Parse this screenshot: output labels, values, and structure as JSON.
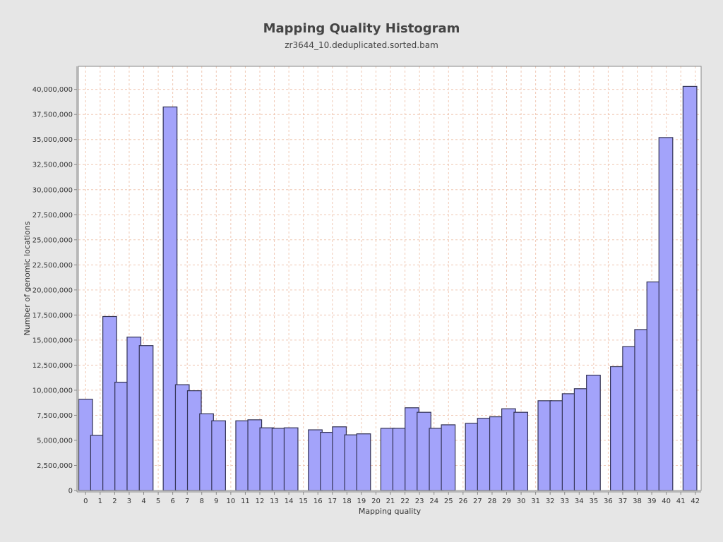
{
  "chart_data": {
    "type": "bar",
    "title": "Mapping Quality Histogram",
    "subtitle": "zr3644_10.deduplicated.sorted.bam",
    "xlabel": "Mapping quality",
    "ylabel": "Number of genomic locations",
    "xlim": [
      -0.5,
      42.4
    ],
    "ylim": [
      0,
      42300000
    ],
    "grid": true,
    "legend": "none",
    "x_ticks": [
      0,
      1,
      2,
      3,
      4,
      5,
      6,
      7,
      8,
      9,
      10,
      11,
      12,
      13,
      14,
      15,
      16,
      17,
      18,
      19,
      20,
      21,
      22,
      23,
      24,
      25,
      26,
      27,
      28,
      29,
      30,
      31,
      32,
      33,
      34,
      35,
      36,
      37,
      38,
      39,
      40,
      41,
      42
    ],
    "x_tick_labels": [
      "0",
      "1",
      "2",
      "3",
      "4",
      "5",
      "6",
      "7",
      "8",
      "9",
      "10",
      "11",
      "12",
      "13",
      "14",
      "15",
      "16",
      "17",
      "18",
      "19",
      "20",
      "21",
      "22",
      "23",
      "24",
      "25",
      "26",
      "27",
      "28",
      "29",
      "30",
      "31",
      "32",
      "33",
      "34",
      "35",
      "36",
      "37",
      "38",
      "39",
      "40",
      "41",
      "42"
    ],
    "y_ticks": [
      0,
      2500000,
      5000000,
      7500000,
      10000000,
      12500000,
      15000000,
      17500000,
      20000000,
      22500000,
      25000000,
      27500000,
      30000000,
      32500000,
      35000000,
      37500000,
      40000000
    ],
    "y_tick_labels": [
      "0",
      "2,500,000",
      "5,000,000",
      "7,500,000",
      "10,000,000",
      "12,500,000",
      "15,000,000",
      "17,500,000",
      "20,000,000",
      "22,500,000",
      "25,000,000",
      "27,500,000",
      "30,000,000",
      "32,500,000",
      "35,000,000",
      "37,500,000",
      "40,000,000"
    ],
    "bars": [
      {
        "x": 0.0,
        "value": 9100000
      },
      {
        "x": 0.82,
        "value": 5500000
      },
      {
        "x": 1.66,
        "value": 17350000
      },
      {
        "x": 2.49,
        "value": 10800000
      },
      {
        "x": 3.33,
        "value": 15300000
      },
      {
        "x": 4.17,
        "value": 14450000
      },
      {
        "x": 5.82,
        "value": 38250000
      },
      {
        "x": 6.66,
        "value": 10550000
      },
      {
        "x": 7.49,
        "value": 9950000
      },
      {
        "x": 8.33,
        "value": 7650000
      },
      {
        "x": 9.16,
        "value": 6950000
      },
      {
        "x": 10.82,
        "value": 6950000
      },
      {
        "x": 11.65,
        "value": 7050000
      },
      {
        "x": 12.48,
        "value": 6250000
      },
      {
        "x": 13.32,
        "value": 6200000
      },
      {
        "x": 14.15,
        "value": 6250000
      },
      {
        "x": 15.82,
        "value": 6050000
      },
      {
        "x": 16.65,
        "value": 5800000
      },
      {
        "x": 17.48,
        "value": 6350000
      },
      {
        "x": 18.32,
        "value": 5550000
      },
      {
        "x": 19.15,
        "value": 5650000
      },
      {
        "x": 20.81,
        "value": 6200000
      },
      {
        "x": 21.64,
        "value": 6200000
      },
      {
        "x": 22.48,
        "value": 8250000
      },
      {
        "x": 23.31,
        "value": 7800000
      },
      {
        "x": 24.15,
        "value": 6200000
      },
      {
        "x": 24.98,
        "value": 6550000
      },
      {
        "x": 26.64,
        "value": 6700000
      },
      {
        "x": 27.47,
        "value": 7200000
      },
      {
        "x": 28.31,
        "value": 7350000
      },
      {
        "x": 29.14,
        "value": 8150000
      },
      {
        "x": 29.98,
        "value": 7800000
      },
      {
        "x": 31.64,
        "value": 8950000
      },
      {
        "x": 32.47,
        "value": 8950000
      },
      {
        "x": 33.31,
        "value": 9650000
      },
      {
        "x": 34.14,
        "value": 10150000
      },
      {
        "x": 34.98,
        "value": 11500000
      },
      {
        "x": 36.63,
        "value": 12350000
      },
      {
        "x": 37.47,
        "value": 14350000
      },
      {
        "x": 38.3,
        "value": 16050000
      },
      {
        "x": 39.14,
        "value": 20800000
      },
      {
        "x": 39.97,
        "value": 35200000
      },
      {
        "x": 41.63,
        "value": 40300000
      }
    ],
    "bar_width": 0.95,
    "colors": {
      "bar_fill": "#a3a3fa",
      "bar_stroke": "#333355",
      "plot_background": "#ffffff",
      "grid": "#f0c8b4",
      "page_background": "#e6e6e6"
    }
  }
}
